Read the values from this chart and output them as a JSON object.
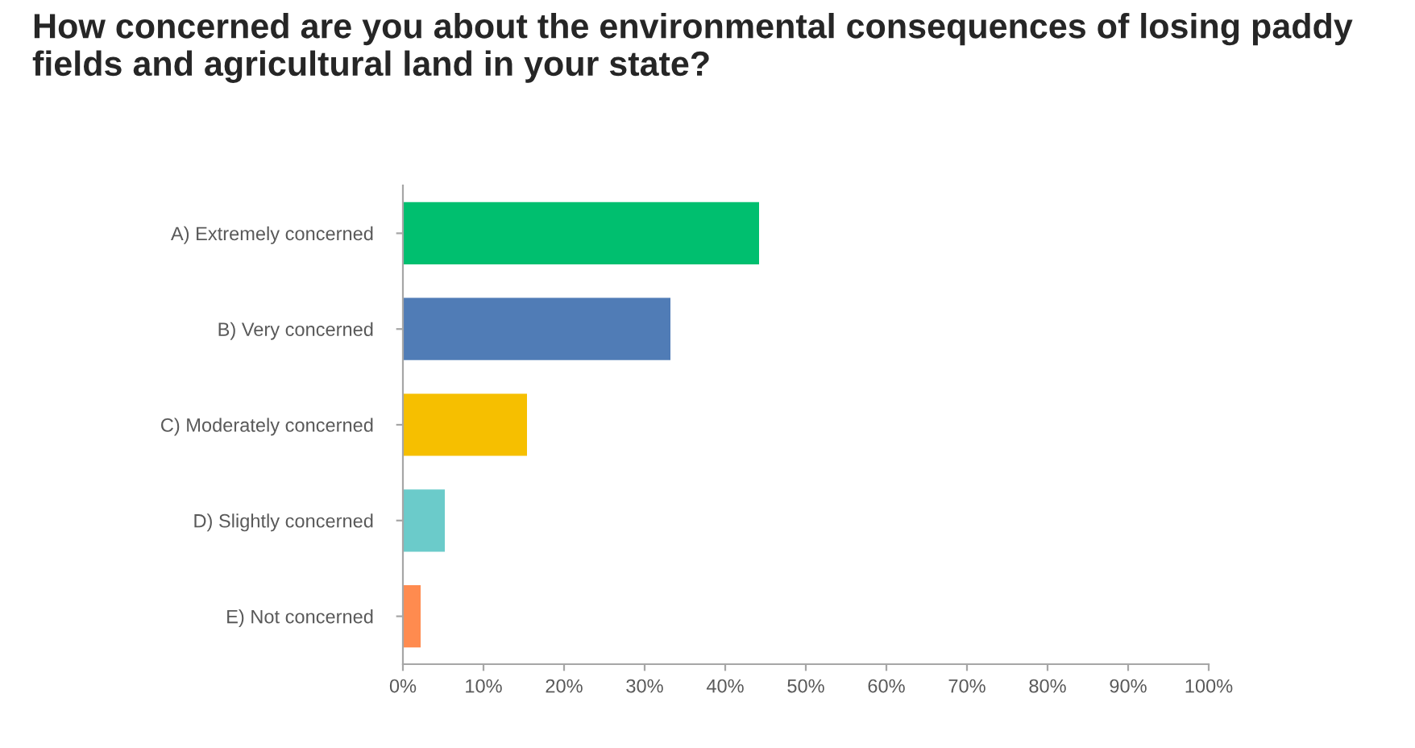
{
  "chart_data": {
    "type": "bar",
    "orientation": "horizontal",
    "title": "How concerned are you about the environmental consequences of losing paddy fields and agricultural land in your state?",
    "categories": [
      "A) Extremely concerned",
      "B) Very concerned",
      "C) Moderately concerned",
      "D) Slightly concerned",
      "E) Not concerned"
    ],
    "values": [
      44.2,
      33.2,
      15.4,
      5.2,
      2.2
    ],
    "colors": [
      "#00bf6f",
      "#507cb6",
      "#f6bf00",
      "#6bcbca",
      "#ff8b4f"
    ],
    "xlim": [
      0,
      100
    ],
    "xticks": [
      {
        "value": 0,
        "label": "0%"
      },
      {
        "value": 10,
        "label": "10%"
      },
      {
        "value": 20,
        "label": "20%"
      },
      {
        "value": 30,
        "label": "30%"
      },
      {
        "value": 40,
        "label": "40%"
      },
      {
        "value": 50,
        "label": "50%"
      },
      {
        "value": 60,
        "label": "60%"
      },
      {
        "value": 70,
        "label": "70%"
      },
      {
        "value": 80,
        "label": "80%"
      },
      {
        "value": 90,
        "label": "90%"
      },
      {
        "value": 100,
        "label": "100%"
      }
    ],
    "grid": false
  }
}
